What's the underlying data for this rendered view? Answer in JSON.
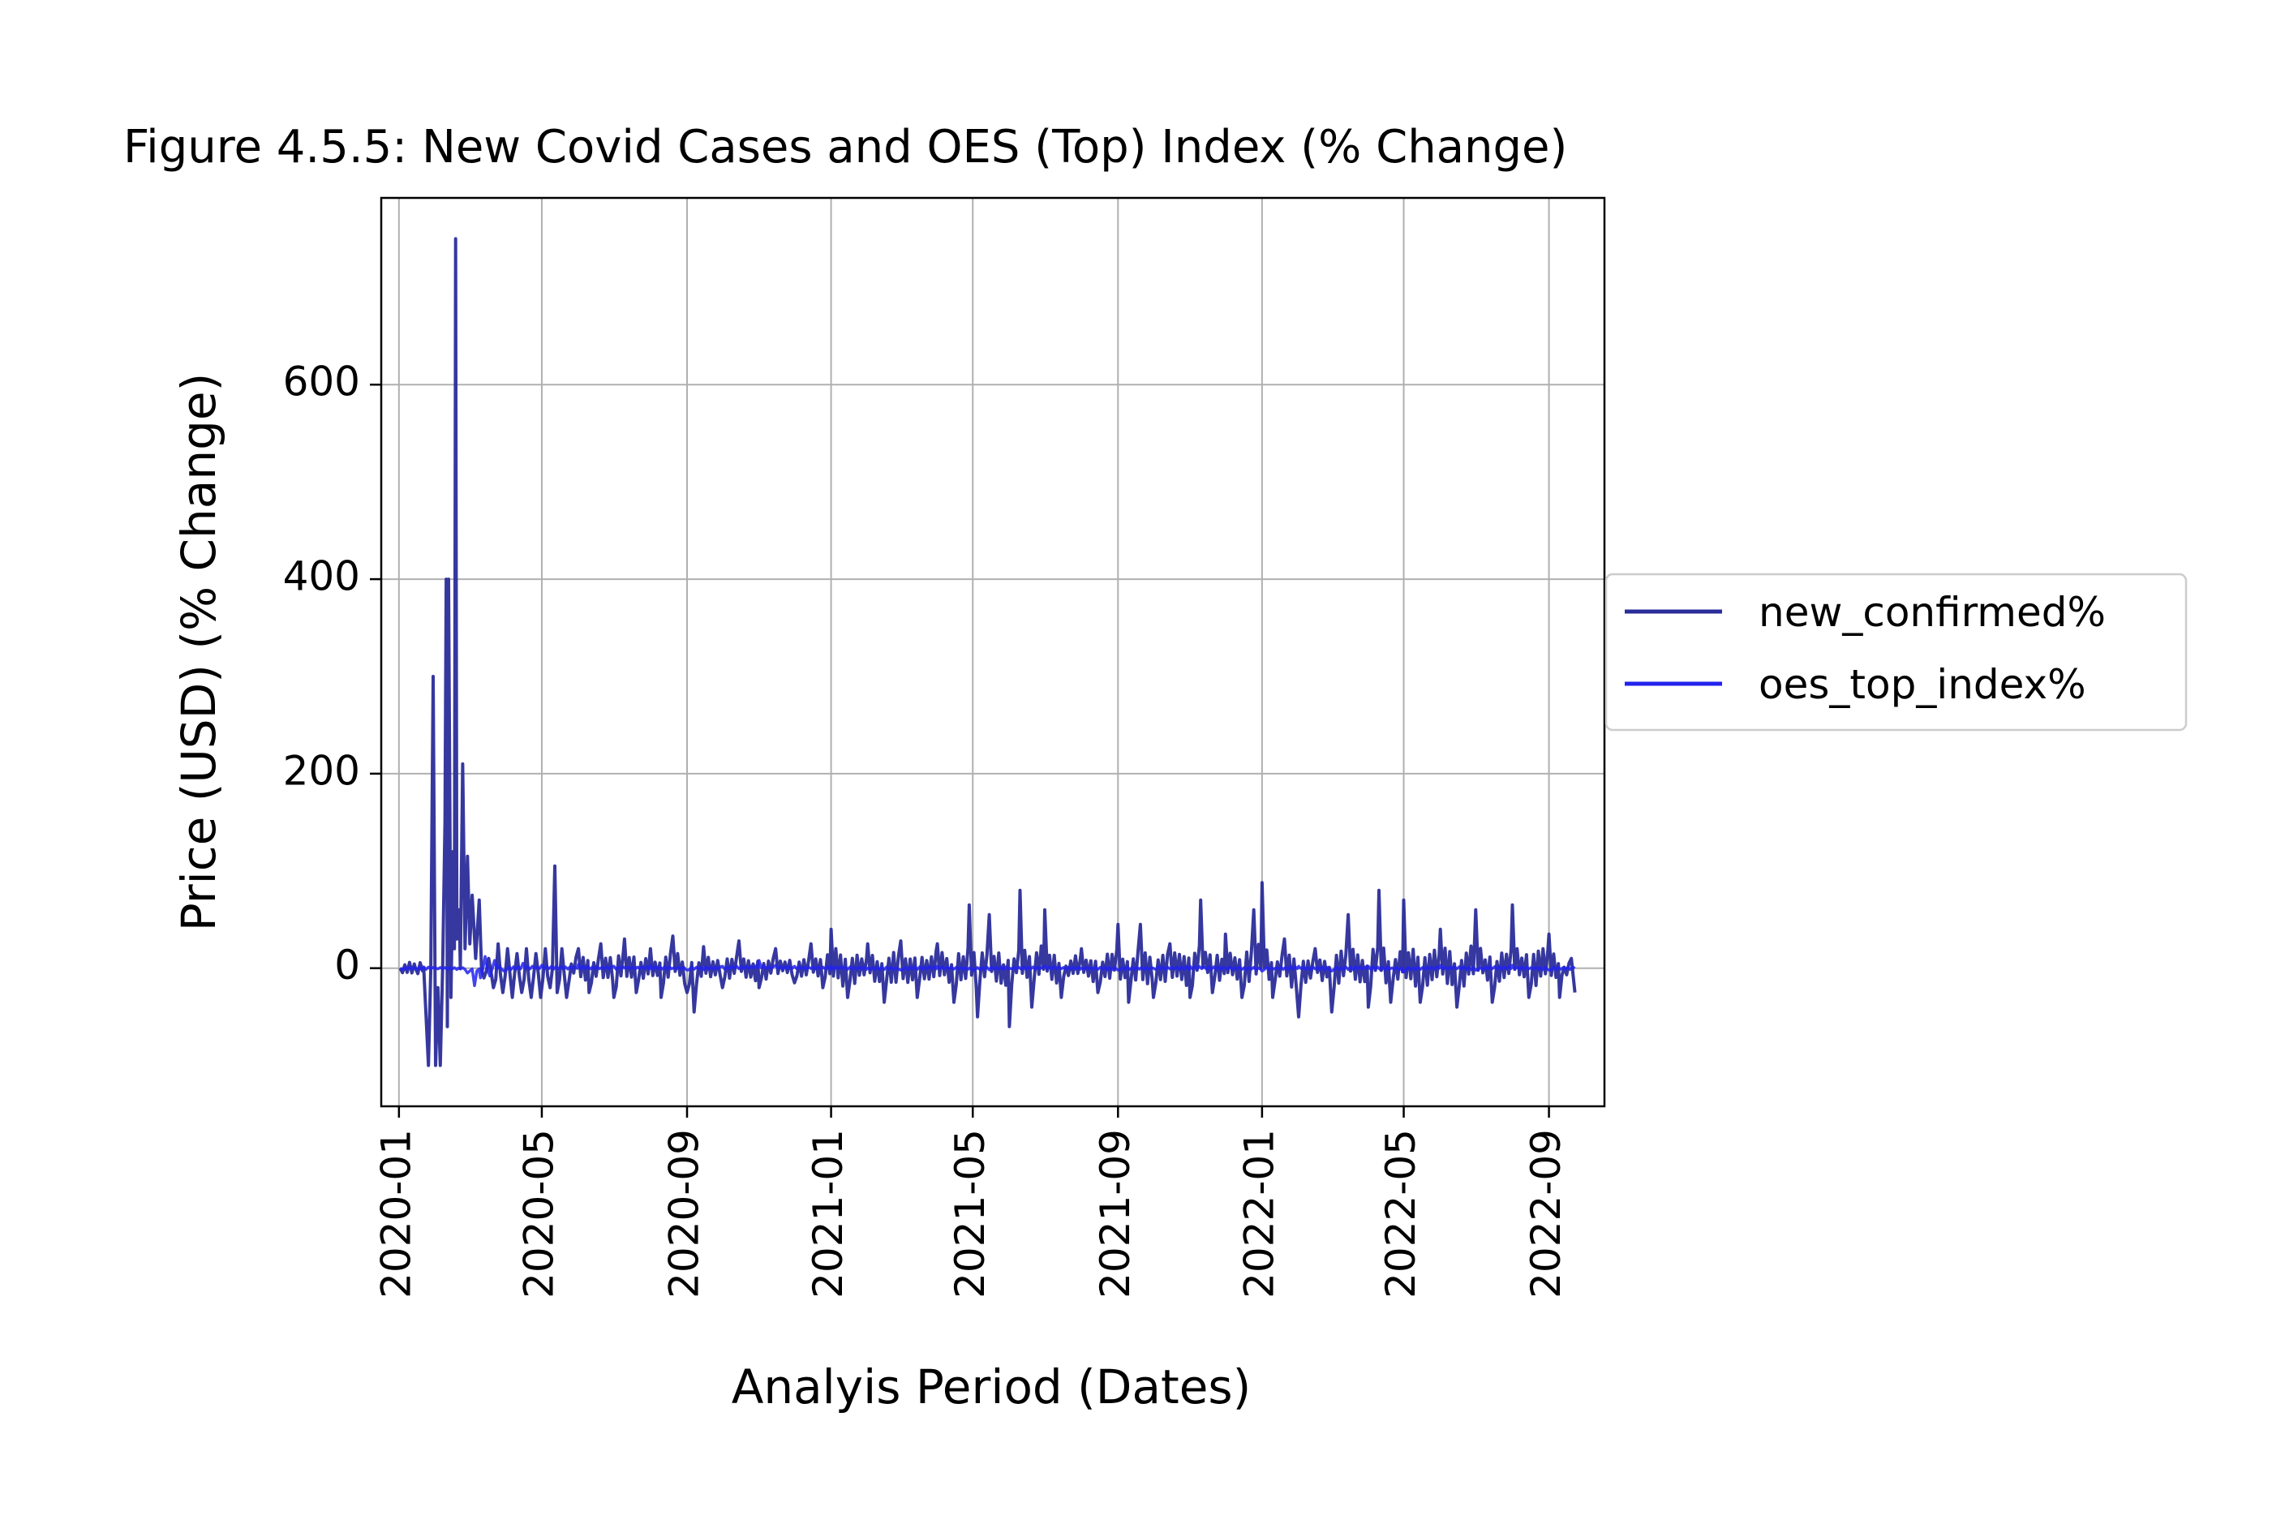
{
  "chart_data": {
    "type": "line",
    "title": "Figure 4.5.5: New Covid Cases and OES (Top) Index (% Change)",
    "xlabel": "Analyis Period (Dates)",
    "ylabel": "Price (USD) (% Change)",
    "x_ticks": [
      "2020-01",
      "2020-05",
      "2020-09",
      "2021-01",
      "2021-05",
      "2021-09",
      "2022-01",
      "2022-05",
      "2022-09"
    ],
    "y_ticks": [
      0,
      200,
      400,
      600
    ],
    "xlim": [
      "2019-12-17",
      "2022-10-18"
    ],
    "ylim": [
      -142,
      792
    ],
    "grid": true,
    "legend_position": "center-right outside",
    "series": [
      {
        "name": "new_confirmed%",
        "color": "#2b2d9a",
        "points": [
          [
            "2020-01-02",
            0
          ],
          [
            "2020-01-15",
            0
          ],
          [
            "2020-01-22",
            0
          ],
          [
            "2020-01-24",
            -50
          ],
          [
            "2020-01-26",
            -100
          ],
          [
            "2020-01-28",
            0
          ],
          [
            "2020-01-30",
            300
          ],
          [
            "2020-02-01",
            -100
          ],
          [
            "2020-02-03",
            -20
          ],
          [
            "2020-02-05",
            -100
          ],
          [
            "2020-02-07",
            0
          ],
          [
            "2020-02-09",
            150
          ],
          [
            "2020-02-10",
            400
          ],
          [
            "2020-02-11",
            -60
          ],
          [
            "2020-02-12",
            400
          ],
          [
            "2020-02-14",
            -30
          ],
          [
            "2020-02-16",
            120
          ],
          [
            "2020-02-17",
            20
          ],
          [
            "2020-02-18",
            750
          ],
          [
            "2020-02-19",
            30
          ],
          [
            "2020-02-21",
            60
          ],
          [
            "2020-02-22",
            0
          ],
          [
            "2020-02-24",
            210
          ],
          [
            "2020-02-26",
            20
          ],
          [
            "2020-02-28",
            115
          ],
          [
            "2020-03-01",
            25
          ],
          [
            "2020-03-03",
            75
          ],
          [
            "2020-03-06",
            10
          ],
          [
            "2020-03-09",
            70
          ],
          [
            "2020-03-13",
            -10
          ],
          [
            "2020-03-17",
            10
          ],
          [
            "2020-03-21",
            -20
          ],
          [
            "2020-03-25",
            25
          ],
          [
            "2020-03-29",
            -25
          ],
          [
            "2020-04-02",
            20
          ],
          [
            "2020-04-06",
            -30
          ],
          [
            "2020-04-10",
            15
          ],
          [
            "2020-04-14",
            -25
          ],
          [
            "2020-04-18",
            20
          ],
          [
            "2020-04-22",
            -30
          ],
          [
            "2020-04-26",
            15
          ],
          [
            "2020-04-30",
            -30
          ],
          [
            "2020-05-04",
            20
          ],
          [
            "2020-05-08",
            -20
          ],
          [
            "2020-05-12",
            105
          ],
          [
            "2020-05-14",
            -25
          ],
          [
            "2020-05-18",
            20
          ],
          [
            "2020-05-22",
            -30
          ],
          [
            "2020-06-01",
            20
          ],
          [
            "2020-06-10",
            -25
          ],
          [
            "2020-06-20",
            25
          ],
          [
            "2020-07-01",
            -30
          ],
          [
            "2020-07-10",
            30
          ],
          [
            "2020-07-20",
            -25
          ],
          [
            "2020-08-01",
            20
          ],
          [
            "2020-08-10",
            -30
          ],
          [
            "2020-08-20",
            33
          ],
          [
            "2020-09-01",
            -25
          ],
          [
            "2020-09-07",
            -45
          ],
          [
            "2020-09-15",
            22
          ],
          [
            "2020-10-01",
            -20
          ],
          [
            "2020-10-15",
            28
          ],
          [
            "2020-11-01",
            -20
          ],
          [
            "2020-11-15",
            20
          ],
          [
            "2020-12-01",
            -15
          ],
          [
            "2020-12-15",
            25
          ],
          [
            "2020-12-25",
            -20
          ],
          [
            "2021-01-01",
            40
          ],
          [
            "2021-01-15",
            -30
          ],
          [
            "2021-02-01",
            25
          ],
          [
            "2021-02-15",
            -35
          ],
          [
            "2021-03-01",
            28
          ],
          [
            "2021-03-15",
            -30
          ],
          [
            "2021-04-01",
            25
          ],
          [
            "2021-04-15",
            -35
          ],
          [
            "2021-04-28",
            65
          ],
          [
            "2021-05-05",
            -50
          ],
          [
            "2021-05-15",
            55
          ],
          [
            "2021-06-01",
            -60
          ],
          [
            "2021-06-10",
            80
          ],
          [
            "2021-06-20",
            -40
          ],
          [
            "2021-07-01",
            60
          ],
          [
            "2021-07-15",
            -30
          ],
          [
            "2021-08-01",
            20
          ],
          [
            "2021-08-15",
            -25
          ],
          [
            "2021-09-01",
            45
          ],
          [
            "2021-09-10",
            -35
          ],
          [
            "2021-09-20",
            45
          ],
          [
            "2021-10-01",
            -30
          ],
          [
            "2021-10-15",
            25
          ],
          [
            "2021-11-01",
            -30
          ],
          [
            "2021-11-10",
            70
          ],
          [
            "2021-11-20",
            -25
          ],
          [
            "2021-12-01",
            35
          ],
          [
            "2021-12-15",
            -30
          ],
          [
            "2021-12-25",
            60
          ],
          [
            "2022-01-01",
            88
          ],
          [
            "2022-01-10",
            -30
          ],
          [
            "2022-01-20",
            30
          ],
          [
            "2022-02-01",
            -50
          ],
          [
            "2022-02-15",
            20
          ],
          [
            "2022-03-01",
            -45
          ],
          [
            "2022-03-15",
            55
          ],
          [
            "2022-04-01",
            -40
          ],
          [
            "2022-04-10",
            80
          ],
          [
            "2022-04-20",
            -35
          ],
          [
            "2022-05-01",
            70
          ],
          [
            "2022-05-15",
            -35
          ],
          [
            "2022-06-01",
            40
          ],
          [
            "2022-06-15",
            -40
          ],
          [
            "2022-07-01",
            60
          ],
          [
            "2022-07-15",
            -35
          ],
          [
            "2022-08-01",
            65
          ],
          [
            "2022-08-15",
            -30
          ],
          [
            "2022-09-01",
            35
          ],
          [
            "2022-09-10",
            -30
          ],
          [
            "2022-09-20",
            10
          ],
          [
            "2022-09-23",
            -25
          ]
        ]
      },
      {
        "name": "oes_top_index%",
        "color": "#2222ee",
        "points": [
          [
            "2020-01-02",
            0
          ],
          [
            "2020-02-01",
            0
          ],
          [
            "2020-02-20",
            0
          ],
          [
            "2020-02-28",
            -5
          ],
          [
            "2020-03-05",
            -18
          ],
          [
            "2020-03-10",
            -10
          ],
          [
            "2020-03-14",
            12
          ],
          [
            "2020-03-18",
            -8
          ],
          [
            "2020-03-22",
            8
          ],
          [
            "2020-03-30",
            -3
          ],
          [
            "2020-04-15",
            5
          ],
          [
            "2020-05-01",
            3
          ],
          [
            "2020-06-01",
            4
          ],
          [
            "2020-07-01",
            2
          ],
          [
            "2020-08-01",
            3
          ],
          [
            "2020-09-01",
            -2
          ],
          [
            "2020-10-01",
            2
          ],
          [
            "2020-11-01",
            8
          ],
          [
            "2020-11-15",
            3
          ],
          [
            "2020-12-01",
            2
          ],
          [
            "2021-01-01",
            2
          ],
          [
            "2021-02-01",
            0
          ],
          [
            "2021-03-01",
            -2
          ],
          [
            "2021-04-01",
            2
          ],
          [
            "2021-05-01",
            -2
          ],
          [
            "2021-06-01",
            0
          ],
          [
            "2021-07-01",
            2
          ],
          [
            "2021-08-01",
            0
          ],
          [
            "2021-09-01",
            -2
          ],
          [
            "2021-10-01",
            0
          ],
          [
            "2021-11-01",
            2
          ],
          [
            "2021-12-01",
            0
          ],
          [
            "2022-01-01",
            -3
          ],
          [
            "2022-02-01",
            2
          ],
          [
            "2022-03-01",
            -3
          ],
          [
            "2022-04-01",
            2
          ],
          [
            "2022-05-01",
            -4
          ],
          [
            "2022-06-01",
            3
          ],
          [
            "2022-07-01",
            -2
          ],
          [
            "2022-08-01",
            3
          ],
          [
            "2022-09-01",
            -2
          ],
          [
            "2022-09-23",
            0
          ]
        ]
      }
    ]
  }
}
